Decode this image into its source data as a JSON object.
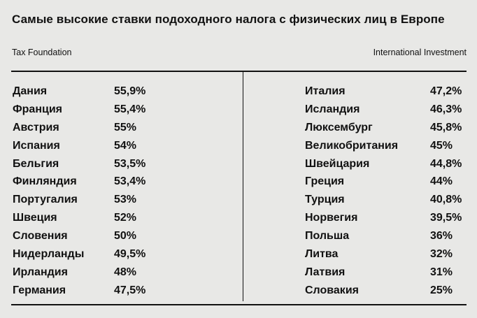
{
  "title": "Самые высокие ставки подоходного налога с физических лиц в Европе",
  "sources": {
    "left": "Tax Foundation",
    "right": "International Investment"
  },
  "left_column": [
    {
      "country": "Дания",
      "rate": "55,9%"
    },
    {
      "country": "Франция",
      "rate": "55,4%"
    },
    {
      "country": "Австрия",
      "rate": "55%"
    },
    {
      "country": "Испания",
      "rate": "54%"
    },
    {
      "country": "Бельгия",
      "rate": "53,5%"
    },
    {
      "country": "Финляндия",
      "rate": "53,4%"
    },
    {
      "country": "Португалия",
      "rate": "53%"
    },
    {
      "country": "Швеция",
      "rate": "52%"
    },
    {
      "country": "Словения",
      "rate": "50%"
    },
    {
      "country": "Нидерланды",
      "rate": "49,5%"
    },
    {
      "country": "Ирландия",
      "rate": "48%"
    },
    {
      "country": "Германия",
      "rate": "47,5%"
    }
  ],
  "right_column": [
    {
      "country": "Италия",
      "rate": "47,2%"
    },
    {
      "country": "Исландия",
      "rate": "46,3%"
    },
    {
      "country": "Люксембург",
      "rate": "45,8%"
    },
    {
      "country": "Великобритания",
      "rate": "45%"
    },
    {
      "country": "Швейцария",
      "rate": "44,8%"
    },
    {
      "country": "Греция",
      "rate": "44%"
    },
    {
      "country": "Турция",
      "rate": "40,8%"
    },
    {
      "country": "Норвегия",
      "rate": "39,5%"
    },
    {
      "country": "Польша",
      "rate": "36%"
    },
    {
      "country": "Литва",
      "rate": "32%"
    },
    {
      "country": "Латвия",
      "rate": "31%"
    },
    {
      "country": "Словакия",
      "rate": "25%"
    }
  ]
}
